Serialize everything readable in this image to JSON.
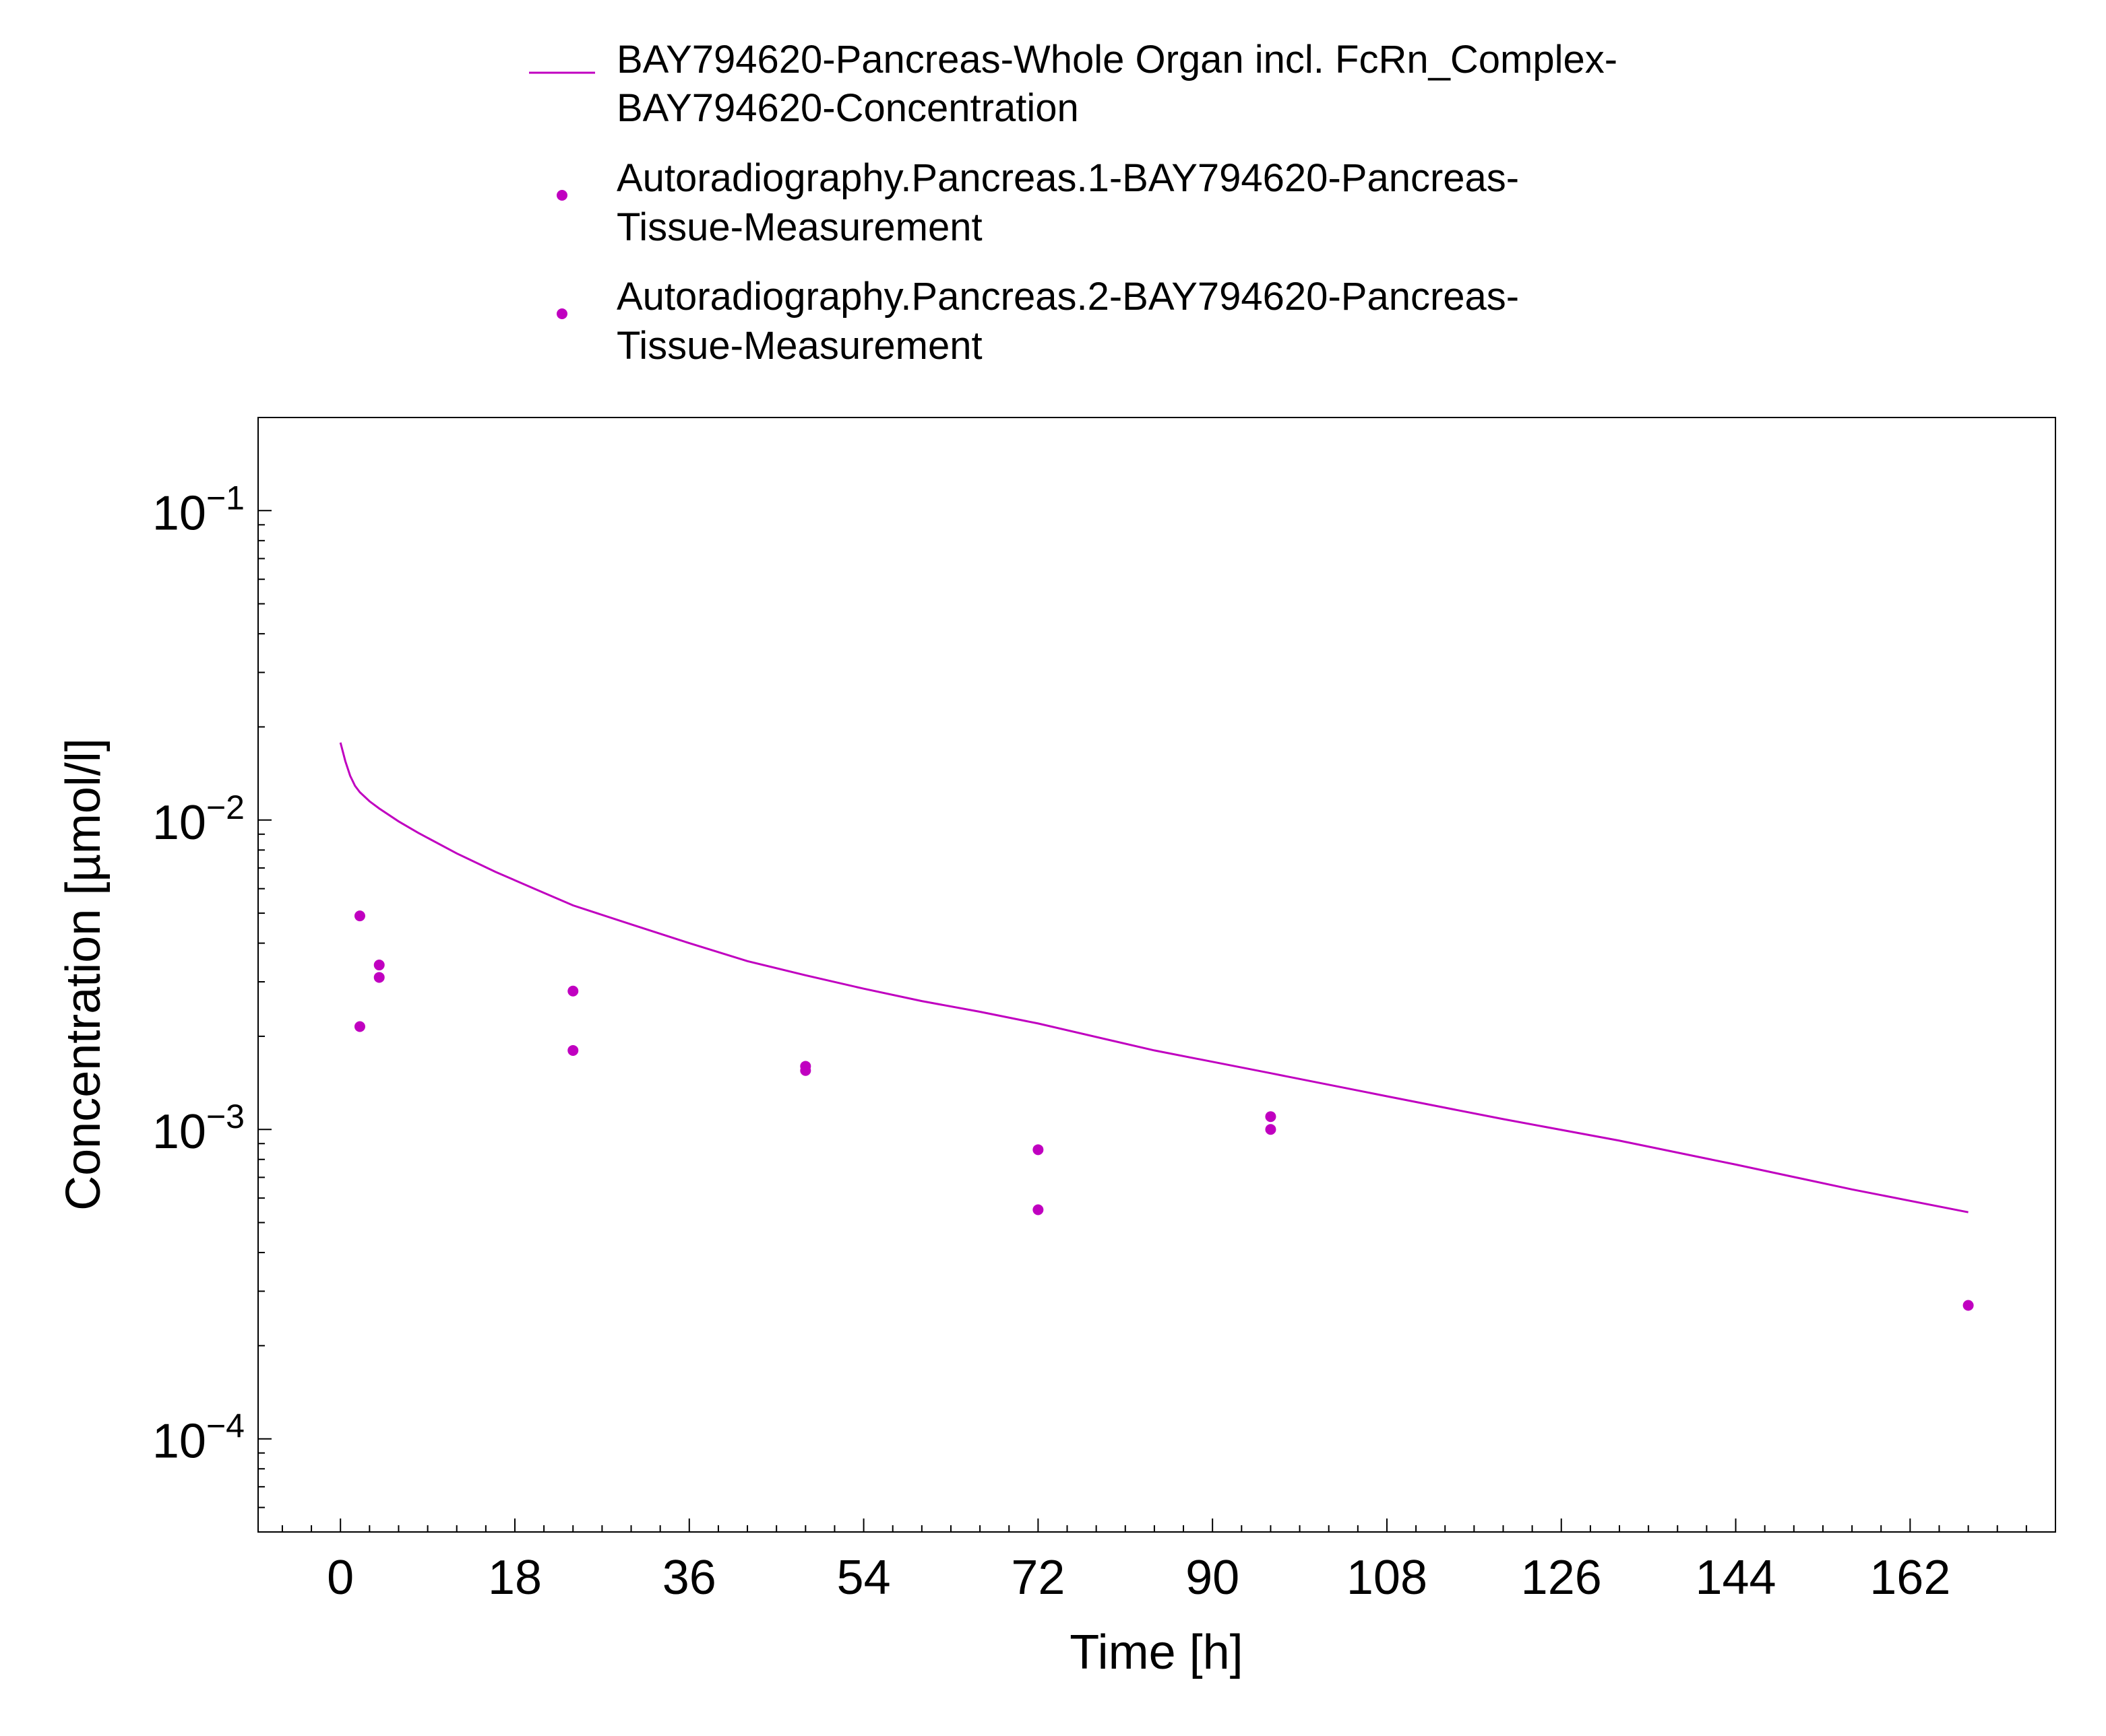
{
  "colors": {
    "series": "#c000c0",
    "axis": "#000000",
    "background": "#ffffff"
  },
  "legend": {
    "position": "top-center",
    "entries": [
      {
        "lines": [
          "BAY794620-Pancreas-Whole Organ incl. FcRn_Complex-",
          "BAY794620-Concentration"
        ],
        "marker": "line"
      },
      {
        "lines": [
          "Autoradiography.Pancreas.1-BAY794620-Pancreas-",
          "Tissue-Measurement"
        ],
        "marker": "dot"
      },
      {
        "lines": [
          "Autoradiography.Pancreas.2-BAY794620-Pancreas-",
          "Tissue-Measurement"
        ],
        "marker": "dot"
      }
    ]
  },
  "chart_data": {
    "type": "line",
    "title": "",
    "xlabel": "Time [h]",
    "ylabel": "Concentration [µmol/l]",
    "xlim": [
      -8.5,
      177
    ],
    "ylim": [
      5e-05,
      0.2
    ],
    "yscale": "log",
    "grid": false,
    "x_ticks": [
      0,
      18,
      36,
      54,
      72,
      90,
      108,
      126,
      144,
      162
    ],
    "y_ticks": [
      {
        "value": 0.1,
        "base": "10",
        "exp": "−1"
      },
      {
        "value": 0.01,
        "base": "10",
        "exp": "−2"
      },
      {
        "value": 0.001,
        "base": "10",
        "exp": "−3"
      },
      {
        "value": 0.0001,
        "base": "10",
        "exp": "−4"
      }
    ],
    "series": [
      {
        "name": "BAY794620-Pancreas-Whole Organ incl. FcRn_Complex-BAY794620-Concentration",
        "kind": "line",
        "x": [
          0,
          0.5,
          1,
          1.5,
          2,
          3,
          4,
          6,
          8,
          12,
          16,
          20,
          24,
          30,
          36,
          42,
          48,
          54,
          60,
          66,
          72,
          84,
          96,
          108,
          120,
          132,
          144,
          156,
          168
        ],
        "y": [
          0.0178,
          0.0155,
          0.0139,
          0.0129,
          0.0123,
          0.0115,
          0.0109,
          0.0099,
          0.0091,
          0.0078,
          0.0068,
          0.006,
          0.0053,
          0.0046,
          0.004,
          0.0035,
          0.00315,
          0.00285,
          0.0026,
          0.0024,
          0.0022,
          0.0018,
          0.00152,
          0.00128,
          0.00108,
          0.00092,
          0.00077,
          0.00064,
          0.00054
        ]
      },
      {
        "name": "Autoradiography.Pancreas.1-BAY794620-Pancreas-Tissue-Measurement",
        "kind": "scatter",
        "x": [
          2,
          4,
          24,
          48,
          72,
          96,
          168
        ],
        "y": [
          0.0049,
          0.0031,
          0.0028,
          0.00155,
          0.00086,
          0.0011,
          0.00027
        ]
      },
      {
        "name": "Autoradiography.Pancreas.2-BAY794620-Pancreas-Tissue-Measurement",
        "kind": "scatter",
        "x": [
          2,
          4,
          24,
          48,
          72,
          96
        ],
        "y": [
          0.00215,
          0.0034,
          0.0018,
          0.0016,
          0.00055,
          0.001
        ]
      }
    ]
  }
}
